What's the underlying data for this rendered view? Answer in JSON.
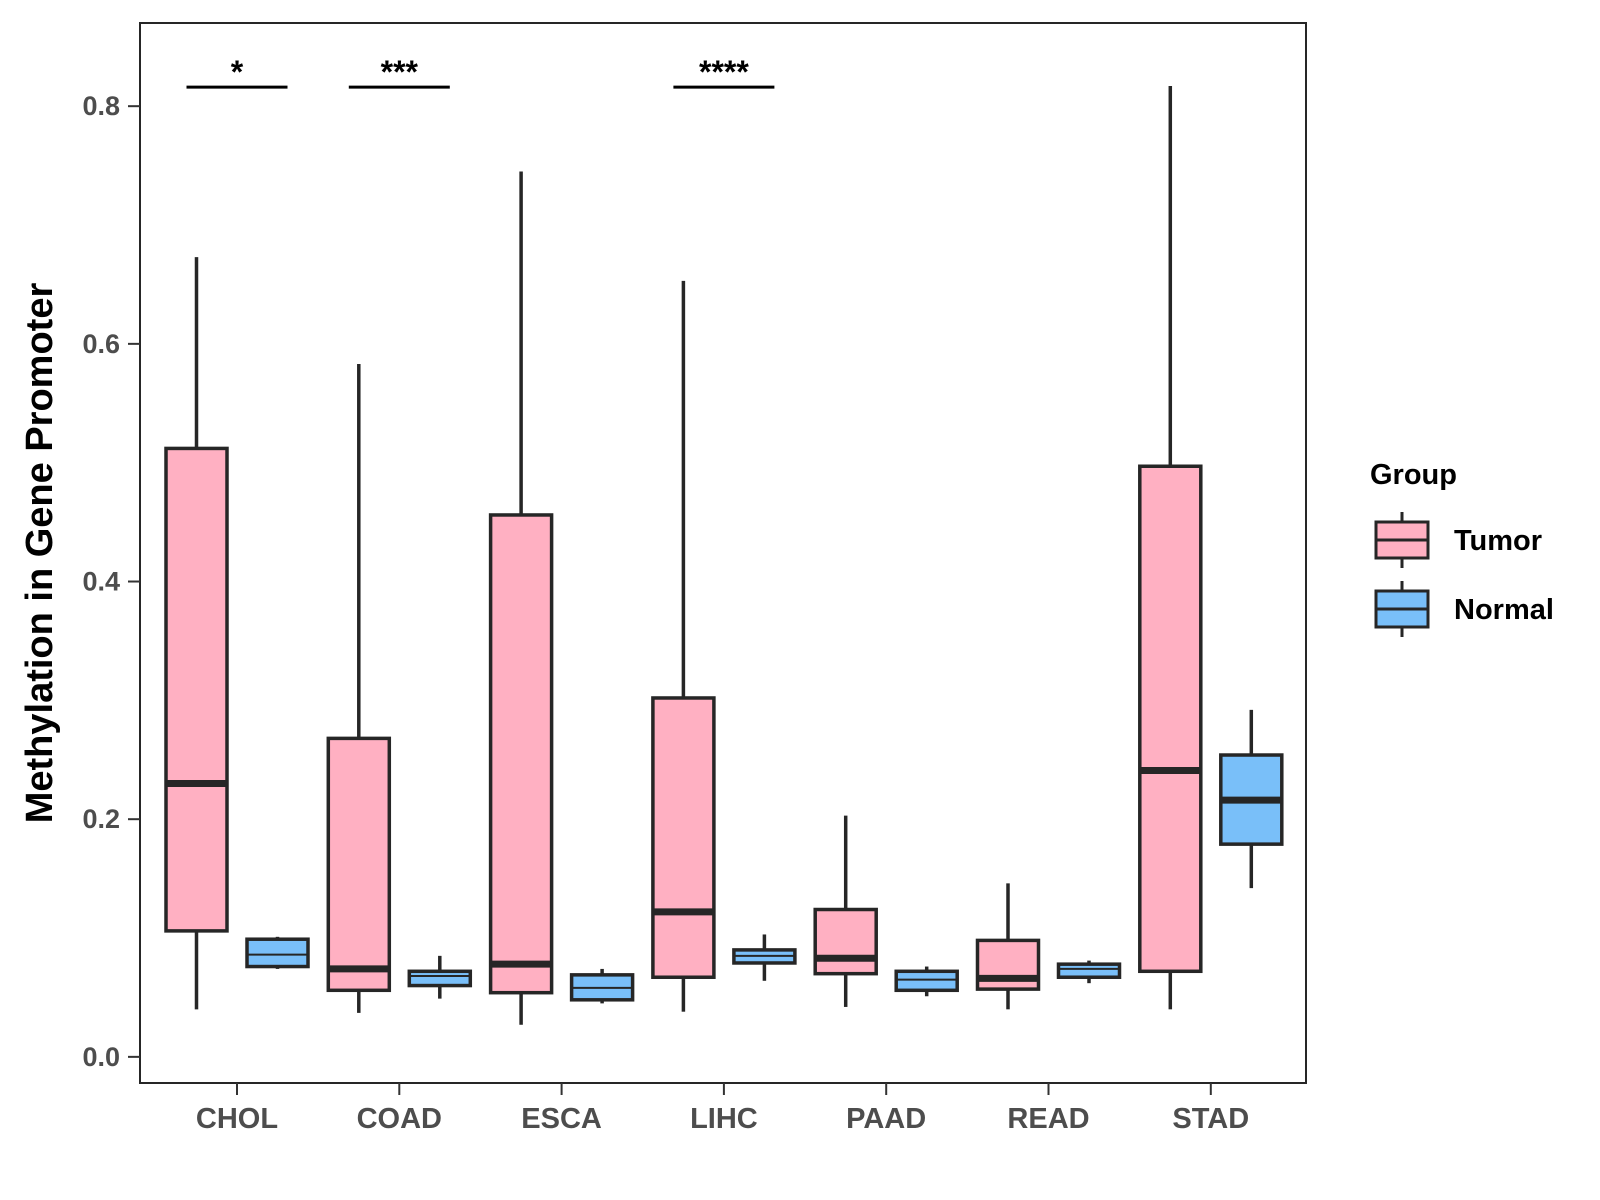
{
  "chart_data": {
    "type": "box",
    "title": "",
    "xlabel": "",
    "ylabel": "Methylation in Gene Promoter",
    "ylim": [
      -0.022,
      0.87
    ],
    "yticks": [
      "0.0",
      "0.2",
      "0.4",
      "0.6",
      "0.8"
    ],
    "ytick_values": [
      0.0,
      0.2,
      0.4,
      0.6,
      0.8
    ],
    "categories": [
      "CHOL",
      "COAD",
      "ESCA",
      "LIHC",
      "PAAD",
      "READ",
      "STAD"
    ],
    "legend": {
      "title": "Group",
      "position": "right",
      "entries": [
        "Tumor",
        "Normal"
      ]
    },
    "colors": {
      "Tumor": "#ffb0c2",
      "Normal": "#79bff9",
      "outline": "#262626",
      "frame": "#262626"
    },
    "series": [
      {
        "name": "Tumor",
        "boxes": [
          {
            "category": "CHOL",
            "min": 0.04,
            "q1": 0.106,
            "median": 0.23,
            "q3": 0.512,
            "max": 0.673
          },
          {
            "category": "COAD",
            "min": 0.037,
            "q1": 0.056,
            "median": 0.074,
            "q3": 0.268,
            "max": 0.583
          },
          {
            "category": "ESCA",
            "min": 0.027,
            "q1": 0.054,
            "median": 0.078,
            "q3": 0.456,
            "max": 0.745
          },
          {
            "category": "LIHC",
            "min": 0.038,
            "q1": 0.067,
            "median": 0.122,
            "q3": 0.302,
            "max": 0.653
          },
          {
            "category": "PAAD",
            "min": 0.042,
            "q1": 0.07,
            "median": 0.083,
            "q3": 0.124,
            "max": 0.203
          },
          {
            "category": "READ",
            "min": 0.04,
            "q1": 0.057,
            "median": 0.066,
            "q3": 0.098,
            "max": 0.146
          },
          {
            "category": "STAD",
            "min": 0.04,
            "q1": 0.072,
            "median": 0.241,
            "q3": 0.497,
            "max": 0.817
          }
        ]
      },
      {
        "name": "Normal",
        "boxes": [
          {
            "category": "CHOL",
            "min": 0.074,
            "q1": 0.076,
            "median": 0.086,
            "q3": 0.099,
            "max": 0.101
          },
          {
            "category": "COAD",
            "min": 0.049,
            "q1": 0.06,
            "median": 0.068,
            "q3": 0.072,
            "max": 0.085
          },
          {
            "category": "ESCA",
            "min": 0.045,
            "q1": 0.048,
            "median": 0.058,
            "q3": 0.069,
            "max": 0.074
          },
          {
            "category": "LIHC",
            "min": 0.064,
            "q1": 0.079,
            "median": 0.085,
            "q3": 0.09,
            "max": 0.103
          },
          {
            "category": "PAAD",
            "min": 0.051,
            "q1": 0.056,
            "median": 0.065,
            "q3": 0.072,
            "max": 0.076
          },
          {
            "category": "READ",
            "min": 0.062,
            "q1": 0.067,
            "median": 0.074,
            "q3": 0.078,
            "max": 0.081
          },
          {
            "category": "STAD",
            "min": 0.142,
            "q1": 0.179,
            "median": 0.216,
            "q3": 0.254,
            "max": 0.292
          }
        ]
      }
    ],
    "annotations": [
      {
        "category": "CHOL",
        "label": "*",
        "y": 0.816
      },
      {
        "category": "COAD",
        "label": "***",
        "y": 0.816
      },
      {
        "category": "LIHC",
        "label": "****",
        "y": 0.816
      }
    ]
  }
}
